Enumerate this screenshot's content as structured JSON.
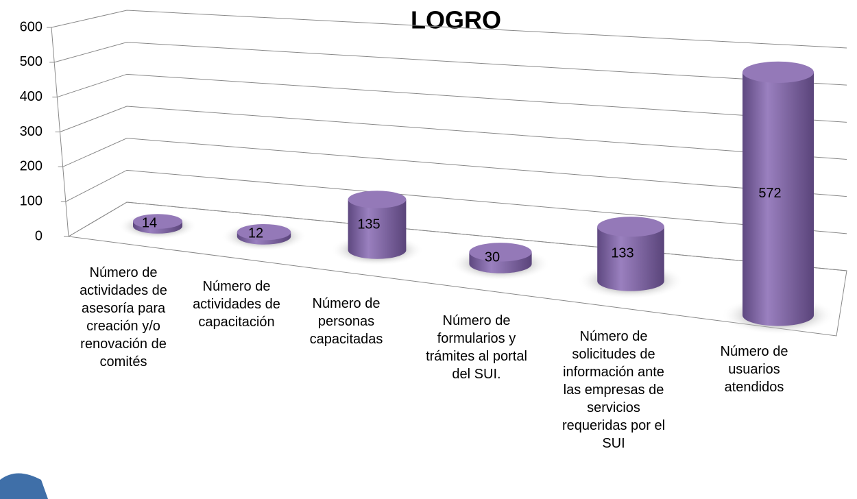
{
  "chart_data": {
    "type": "bar3d",
    "title": "LOGRO",
    "categories": [
      "Número de actividades de asesoría para creación y/o renovación de comités",
      "Número de actividades de capacitación",
      "Número de personas capacitadas",
      "Número de formularios y trámites al portal del SUI.",
      "Número de solicitudes de información ante las empresas de servicios requeridas por el SUI",
      "Número de usuarios atendidos"
    ],
    "values": [
      14,
      12,
      135,
      30,
      133,
      572
    ],
    "color": "#8064a2",
    "ylim": [
      0,
      600
    ],
    "yticks": [
      0,
      100,
      200,
      300,
      400,
      500,
      600
    ],
    "grid": true
  }
}
